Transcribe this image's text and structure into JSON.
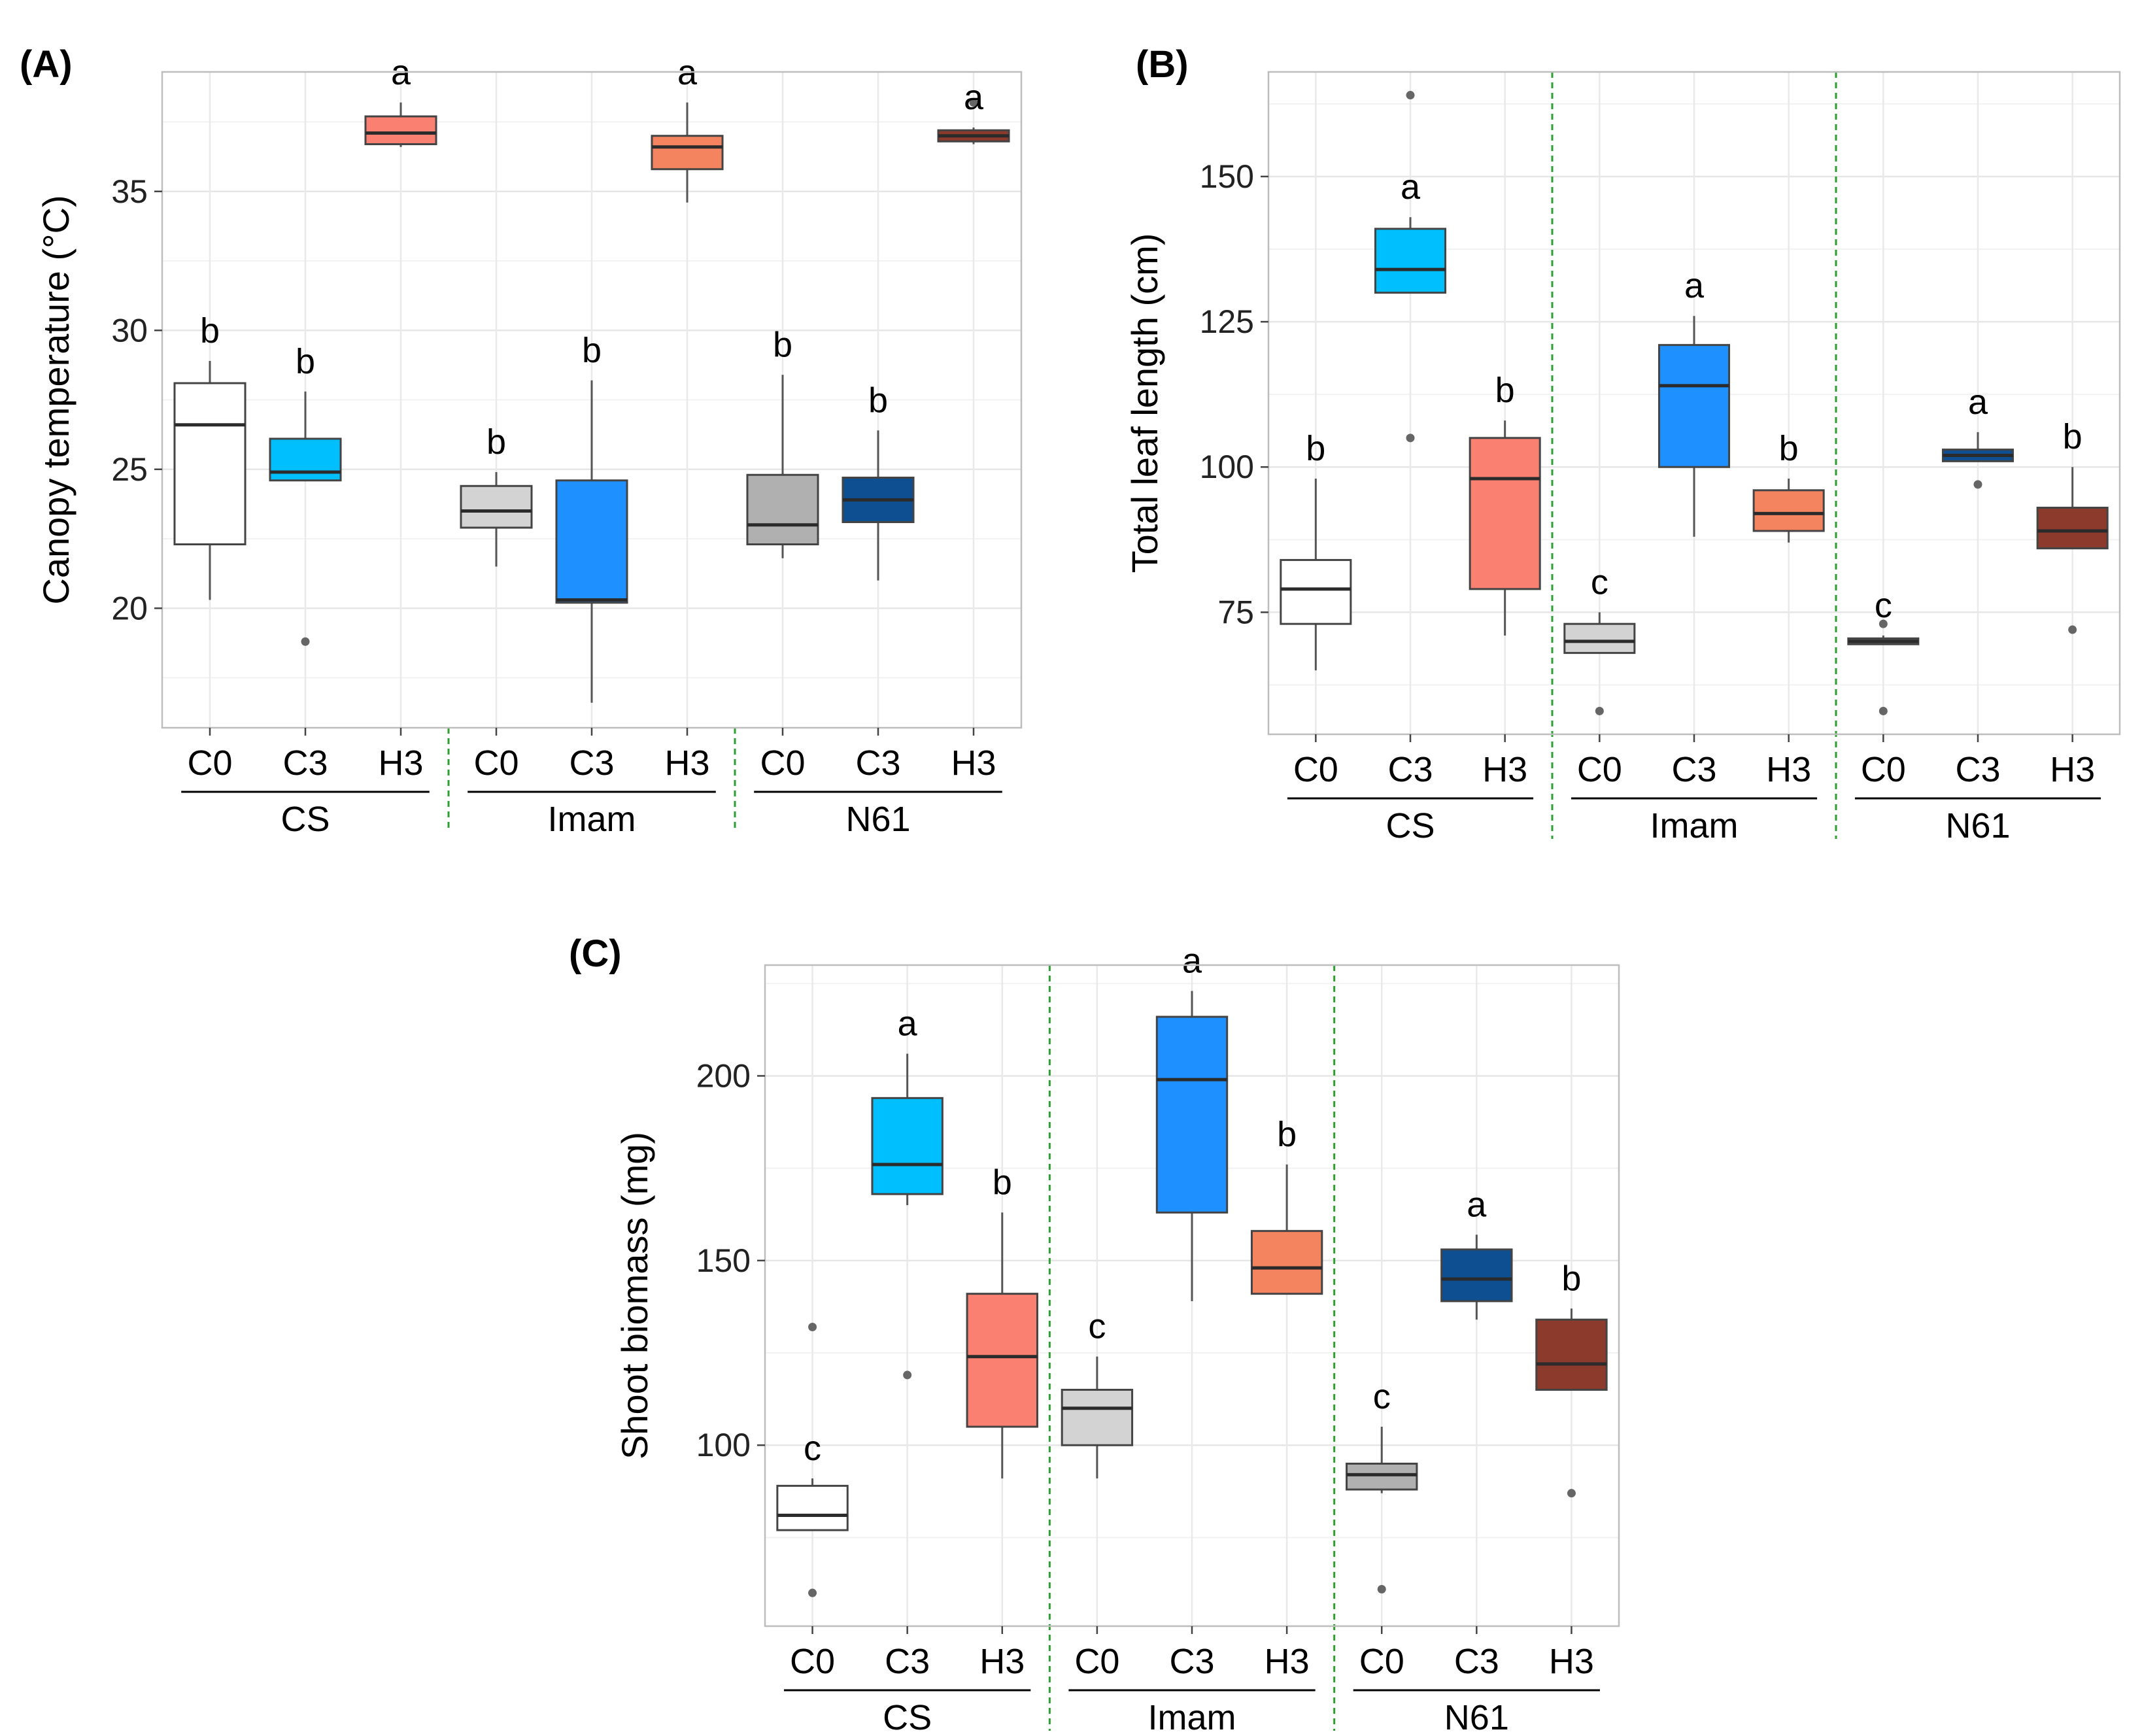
{
  "chart_data": [
    {
      "id": "A",
      "type": "box",
      "panel_label": "(A)",
      "ylabel": "Canopy temperature (°C)",
      "ylim": [
        15.7,
        39.3
      ],
      "yticks": [
        20,
        25,
        30,
        35
      ],
      "categories": [
        "C0",
        "C3",
        "H3",
        "C0",
        "C3",
        "H3",
        "C0",
        "C3",
        "H3"
      ],
      "groups": [
        {
          "name": "CS",
          "start": 0,
          "end": 2
        },
        {
          "name": "Imam",
          "start": 3,
          "end": 5
        },
        {
          "name": "N61",
          "start": 6,
          "end": 8
        }
      ],
      "separators_after": [
        2,
        5
      ],
      "separator_style": "bottom-only",
      "boxes": [
        {
          "q1": 22.3,
          "median": 26.6,
          "q3": 28.1,
          "lo": 20.3,
          "hi": 28.9,
          "fill": "#ffffff",
          "letter": "b"
        },
        {
          "q1": 24.6,
          "median": 24.9,
          "q3": 26.1,
          "lo": 24.6,
          "hi": 27.8,
          "fill": "#00bfff",
          "letter": "b",
          "outliers": [
            18.8
          ]
        },
        {
          "q1": 36.7,
          "median": 37.1,
          "q3": 37.7,
          "lo": 36.6,
          "hi": 38.2,
          "fill": "#fa8072",
          "letter": "a"
        },
        {
          "q1": 22.9,
          "median": 23.5,
          "q3": 24.4,
          "lo": 21.5,
          "hi": 24.9,
          "fill": "#d3d3d3",
          "letter": "b"
        },
        {
          "q1": 20.2,
          "median": 20.3,
          "q3": 24.6,
          "lo": 16.6,
          "hi": 28.2,
          "fill": "#1e90ff",
          "letter": "b"
        },
        {
          "q1": 35.8,
          "median": 36.6,
          "q3": 37.0,
          "lo": 34.6,
          "hi": 38.2,
          "fill": "#f4845f",
          "letter": "a"
        },
        {
          "q1": 22.3,
          "median": 23.0,
          "q3": 24.8,
          "lo": 21.8,
          "hi": 28.4,
          "fill": "#b0b0b0",
          "letter": "b"
        },
        {
          "q1": 23.1,
          "median": 23.9,
          "q3": 24.7,
          "lo": 21.0,
          "hi": 26.4,
          "fill": "#0d4f91",
          "letter": "b"
        },
        {
          "q1": 36.8,
          "median": 37.0,
          "q3": 37.2,
          "lo": 36.7,
          "hi": 37.3,
          "fill": "#8b3a2b",
          "letter": "a",
          "outliers": [
            38.2
          ]
        }
      ]
    },
    {
      "id": "B",
      "type": "box",
      "panel_label": "(B)",
      "ylabel": "Total leaf length (cm)",
      "ylim": [
        54,
        168
      ],
      "yticks": [
        75,
        100,
        125,
        150
      ],
      "categories": [
        "C0",
        "C3",
        "H3",
        "C0",
        "C3",
        "H3",
        "C0",
        "C3",
        "H3"
      ],
      "groups": [
        {
          "name": "CS",
          "start": 0,
          "end": 2
        },
        {
          "name": "Imam",
          "start": 3,
          "end": 5
        },
        {
          "name": "N61",
          "start": 6,
          "end": 8
        }
      ],
      "separators_after": [
        2,
        5
      ],
      "separator_style": "full",
      "boxes": [
        {
          "q1": 73,
          "median": 79,
          "q3": 84,
          "lo": 65,
          "hi": 98,
          "fill": "#ffffff",
          "letter": "b"
        },
        {
          "q1": 130,
          "median": 134,
          "q3": 141,
          "lo": 130,
          "hi": 143,
          "fill": "#00bfff",
          "letter": "a",
          "outliers": [
            105,
            164
          ]
        },
        {
          "q1": 79,
          "median": 98,
          "q3": 105,
          "lo": 71,
          "hi": 108,
          "fill": "#fa8072",
          "letter": "b"
        },
        {
          "q1": 68,
          "median": 70,
          "q3": 73,
          "lo": 68,
          "hi": 75,
          "fill": "#d3d3d3",
          "letter": "c",
          "outliers": [
            58
          ]
        },
        {
          "q1": 100,
          "median": 114,
          "q3": 121,
          "lo": 88,
          "hi": 126,
          "fill": "#1e90ff",
          "letter": "a"
        },
        {
          "q1": 89,
          "median": 92,
          "q3": 96,
          "lo": 87,
          "hi": 98,
          "fill": "#f4845f",
          "letter": "b"
        },
        {
          "q1": 69.5,
          "median": 70,
          "q3": 70.5,
          "lo": 69.5,
          "hi": 71,
          "fill": "#606060",
          "letter": "c",
          "outliers": [
            58,
            73
          ]
        },
        {
          "q1": 101,
          "median": 102,
          "q3": 103,
          "lo": 101,
          "hi": 106,
          "fill": "#0d4f91",
          "letter": "a",
          "outliers": [
            97
          ]
        },
        {
          "q1": 86,
          "median": 89,
          "q3": 93,
          "lo": 86,
          "hi": 100,
          "fill": "#8b3a2b",
          "letter": "b",
          "outliers": [
            72
          ]
        }
      ]
    },
    {
      "id": "C",
      "type": "box",
      "panel_label": "(C)",
      "ylabel": "Shoot biomass (mg)",
      "ylim": [
        51,
        230
      ],
      "yticks": [
        100,
        150,
        200
      ],
      "categories": [
        "C0",
        "C3",
        "H3",
        "C0",
        "C3",
        "H3",
        "C0",
        "C3",
        "H3"
      ],
      "groups": [
        {
          "name": "CS",
          "start": 0,
          "end": 2
        },
        {
          "name": "Imam",
          "start": 3,
          "end": 5
        },
        {
          "name": "N61",
          "start": 6,
          "end": 8
        }
      ],
      "separators_after": [
        2,
        5
      ],
      "separator_style": "full",
      "boxes": [
        {
          "q1": 77,
          "median": 81,
          "q3": 89,
          "lo": 77,
          "hi": 91,
          "fill": "#ffffff",
          "letter": "c",
          "outliers": [
            60,
            132
          ]
        },
        {
          "q1": 168,
          "median": 176,
          "q3": 194,
          "lo": 165,
          "hi": 206,
          "fill": "#00bfff",
          "letter": "a",
          "outliers": [
            119
          ]
        },
        {
          "q1": 105,
          "median": 124,
          "q3": 141,
          "lo": 91,
          "hi": 163,
          "fill": "#fa8072",
          "letter": "b"
        },
        {
          "q1": 100,
          "median": 110,
          "q3": 115,
          "lo": 91,
          "hi": 124,
          "fill": "#d3d3d3",
          "letter": "c"
        },
        {
          "q1": 163,
          "median": 199,
          "q3": 216,
          "lo": 139,
          "hi": 223,
          "fill": "#1e90ff",
          "letter": "a"
        },
        {
          "q1": 141,
          "median": 148,
          "q3": 158,
          "lo": 141,
          "hi": 176,
          "fill": "#f4845f",
          "letter": "b"
        },
        {
          "q1": 88,
          "median": 92,
          "q3": 95,
          "lo": 87,
          "hi": 105,
          "fill": "#b0b0b0",
          "letter": "c",
          "outliers": [
            61
          ]
        },
        {
          "q1": 139,
          "median": 145,
          "q3": 153,
          "lo": 134,
          "hi": 157,
          "fill": "#0d4f91",
          "letter": "a"
        },
        {
          "q1": 115,
          "median": 122,
          "q3": 134,
          "lo": 115,
          "hi": 137,
          "fill": "#8b3a2b",
          "letter": "b",
          "outliers": [
            87
          ]
        }
      ]
    }
  ]
}
